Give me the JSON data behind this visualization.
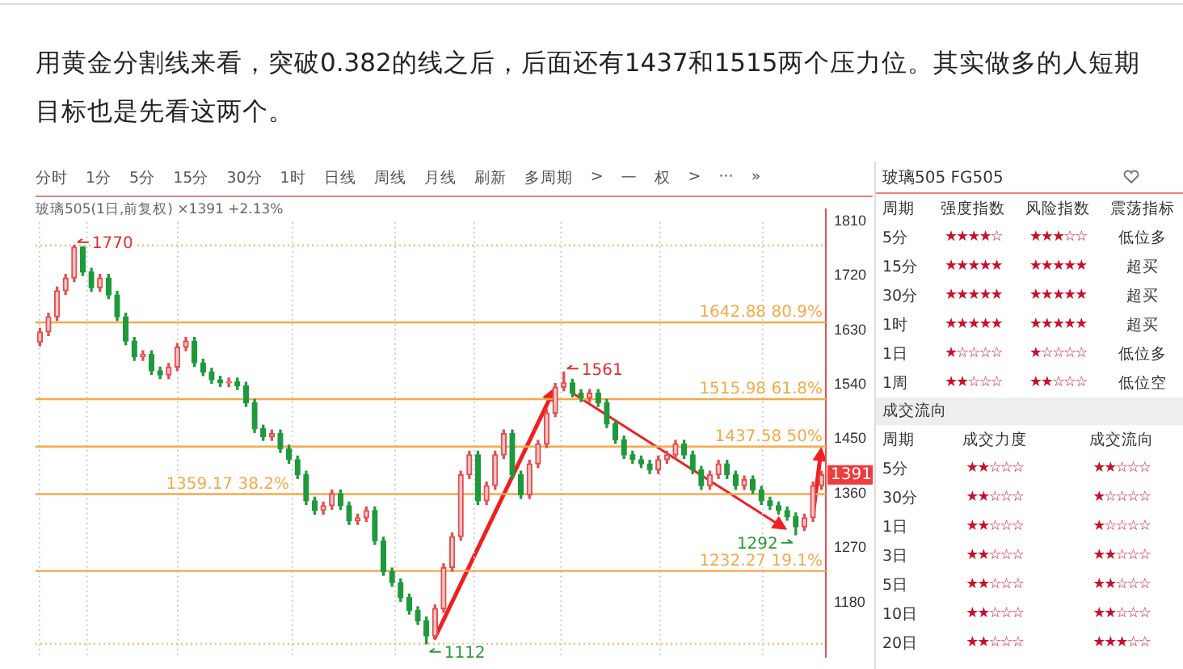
{
  "chart_data": [
    {
      "type": "candlestick",
      "title": "用黄金分割线来看，突破0.382的线之后，后面还有1437和1515两个压力位。其实做多的人短期目标也是先看这两个。",
      "subtitle": "玻璃505(1日,前复权) ×1391 +2.13%",
      "categories": [
        null,
        null,
        null,
        null,
        null,
        null,
        null,
        null,
        null,
        null,
        null,
        null,
        null,
        null,
        null,
        null,
        null,
        null,
        null,
        null,
        null,
        null,
        null,
        null,
        null,
        null,
        null,
        null,
        null,
        null,
        null,
        null,
        null,
        null,
        null,
        null,
        null,
        null,
        null,
        null,
        null,
        null,
        null,
        null,
        null,
        null,
        null,
        null,
        null,
        null,
        null,
        null,
        null,
        null,
        null,
        null,
        null,
        null,
        null,
        null,
        null,
        null,
        null,
        null,
        null,
        null,
        null,
        null,
        null,
        null,
        null,
        null,
        null,
        null,
        null,
        null,
        null,
        null,
        null,
        null,
        null,
        null,
        null,
        null,
        null,
        null,
        null,
        null,
        null,
        null,
        null,
        null
      ],
      "ohlc": [
        [
          1610,
          1633,
          1604,
          1627
        ],
        [
          1627,
          1658,
          1621,
          1652
        ],
        [
          1652,
          1701,
          1646,
          1695
        ],
        [
          1695,
          1722,
          1689,
          1716
        ],
        [
          1716,
          1770,
          1710,
          1767
        ],
        [
          1767,
          1768,
          1720,
          1726
        ],
        [
          1726,
          1732,
          1694,
          1700
        ],
        [
          1700,
          1722,
          1694,
          1716
        ],
        [
          1716,
          1722,
          1682,
          1688
        ],
        [
          1688,
          1694,
          1646,
          1652
        ],
        [
          1652,
          1658,
          1606,
          1612
        ],
        [
          1612,
          1618,
          1580,
          1586
        ],
        [
          1586,
          1596,
          1580,
          1590
        ],
        [
          1590,
          1596,
          1557,
          1563
        ],
        [
          1563,
          1569,
          1550,
          1556
        ],
        [
          1556,
          1575,
          1550,
          1569
        ],
        [
          1569,
          1608,
          1563,
          1602
        ],
        [
          1602,
          1618,
          1596,
          1612
        ],
        [
          1612,
          1618,
          1570,
          1576
        ],
        [
          1576,
          1582,
          1555,
          1561
        ],
        [
          1561,
          1567,
          1542,
          1548
        ],
        [
          1548,
          1554,
          1537,
          1543
        ],
        [
          1543,
          1551,
          1537,
          1545
        ],
        [
          1545,
          1551,
          1532,
          1538
        ],
        [
          1538,
          1544,
          1504,
          1510
        ],
        [
          1510,
          1516,
          1461,
          1467
        ],
        [
          1467,
          1473,
          1448,
          1454
        ],
        [
          1454,
          1465,
          1448,
          1459
        ],
        [
          1459,
          1465,
          1428,
          1434
        ],
        [
          1434,
          1440,
          1410,
          1416
        ],
        [
          1416,
          1422,
          1385,
          1391
        ],
        [
          1391,
          1397,
          1342,
          1348
        ],
        [
          1348,
          1354,
          1326,
          1332
        ],
        [
          1332,
          1346,
          1326,
          1340
        ],
        [
          1340,
          1366,
          1334,
          1360
        ],
        [
          1360,
          1366,
          1334,
          1340
        ],
        [
          1340,
          1346,
          1309,
          1315
        ],
        [
          1315,
          1326,
          1309,
          1320
        ],
        [
          1320,
          1338,
          1314,
          1332
        ],
        [
          1332,
          1338,
          1276,
          1282
        ],
        [
          1282,
          1288,
          1225,
          1231
        ],
        [
          1231,
          1237,
          1207,
          1213
        ],
        [
          1213,
          1219,
          1182,
          1188
        ],
        [
          1188,
          1194,
          1161,
          1167
        ],
        [
          1167,
          1173,
          1144,
          1150
        ],
        [
          1150,
          1156,
          1112,
          1125
        ],
        [
          1125,
          1176,
          1119,
          1170
        ],
        [
          1170,
          1244,
          1164,
          1238
        ],
        [
          1238,
          1295,
          1232,
          1289
        ],
        [
          1289,
          1397,
          1283,
          1391
        ],
        [
          1391,
          1430,
          1385,
          1424
        ],
        [
          1424,
          1430,
          1342,
          1348
        ],
        [
          1348,
          1379,
          1342,
          1373
        ],
        [
          1373,
          1430,
          1367,
          1424
        ],
        [
          1424,
          1465,
          1418,
          1459
        ],
        [
          1459,
          1465,
          1385,
          1391
        ],
        [
          1391,
          1397,
          1352,
          1358
        ],
        [
          1358,
          1415,
          1352,
          1409
        ],
        [
          1409,
          1448,
          1403,
          1442
        ],
        [
          1442,
          1499,
          1436,
          1493
        ],
        [
          1493,
          1542,
          1487,
          1536
        ],
        [
          1536,
          1561,
          1530,
          1543
        ],
        [
          1543,
          1549,
          1520,
          1526
        ],
        [
          1526,
          1532,
          1512,
          1518
        ],
        [
          1518,
          1532,
          1512,
          1526
        ],
        [
          1526,
          1532,
          1504,
          1510
        ],
        [
          1510,
          1516,
          1469,
          1475
        ],
        [
          1475,
          1481,
          1443,
          1449
        ],
        [
          1449,
          1455,
          1418,
          1424
        ],
        [
          1424,
          1430,
          1410,
          1416
        ],
        [
          1416,
          1422,
          1403,
          1409
        ],
        [
          1409,
          1415,
          1393,
          1399
        ],
        [
          1399,
          1422,
          1393,
          1416
        ],
        [
          1416,
          1430,
          1410,
          1424
        ],
        [
          1424,
          1448,
          1418,
          1442
        ],
        [
          1442,
          1448,
          1418,
          1424
        ],
        [
          1424,
          1430,
          1393,
          1399
        ],
        [
          1399,
          1405,
          1367,
          1373
        ],
        [
          1373,
          1397,
          1367,
          1391
        ],
        [
          1391,
          1415,
          1385,
          1409
        ],
        [
          1409,
          1415,
          1385,
          1391
        ],
        [
          1391,
          1397,
          1367,
          1373
        ],
        [
          1373,
          1389,
          1367,
          1383
        ],
        [
          1383,
          1389,
          1360,
          1366
        ],
        [
          1366,
          1372,
          1342,
          1348
        ],
        [
          1348,
          1354,
          1334,
          1340
        ],
        [
          1340,
          1346,
          1326,
          1332
        ],
        [
          1332,
          1338,
          1316,
          1322
        ],
        [
          1322,
          1328,
          1292,
          1305
        ],
        [
          1305,
          1326,
          1299,
          1320
        ],
        [
          1320,
          1379,
          1314,
          1373
        ],
        [
          1373,
          1397,
          1367,
          1391
        ]
      ],
      "ylim": [
        1090,
        1830
      ],
      "yticks": [
        1180,
        1270,
        1360,
        1450,
        1540,
        1630,
        1720,
        1810
      ],
      "ref_lines": [
        {
          "axis": "y",
          "value": 1770,
          "color": "#f3c27a",
          "line_style": "dotted"
        },
        {
          "axis": "y",
          "value": 1642.88,
          "label": "1642.88 80.9%",
          "color": "#f5a94a"
        },
        {
          "axis": "y",
          "value": 1515.98,
          "label": "1515.98 61.8%",
          "color": "#f5a94a"
        },
        {
          "axis": "y",
          "value": 1437.58,
          "label": "1437.58 50%",
          "color": "#f5a94a"
        },
        {
          "axis": "y",
          "value": 1359.17,
          "label": "1359.17 38.2%",
          "color": "#f5a94a"
        },
        {
          "axis": "y",
          "value": 1232.27,
          "label": "1232.27 19.1%",
          "color": "#f5a94a"
        },
        {
          "axis": "y",
          "value": 1112,
          "color": "#f3c27a",
          "line_style": "dotted"
        }
      ],
      "annotations": [
        "分时",
        "1分",
        "5分",
        "15分",
        "30分",
        "1时",
        "日线",
        "周线",
        "月线",
        "刷新",
        "多周期",
        ">",
        "—",
        "权",
        ">",
        "···",
        "»",
        {
          "text": "1770",
          "y": 1770
        },
        "1561",
        {
          "text": "1112",
          "y": 1112
        },
        "1292",
        {
          "text": "1391",
          "y": 1391
        }
      ],
      "grid": false,
      "legend": false
    },
    {
      "type": "other",
      "title": "玻璃505 FG505",
      "annotations": [
        "周期\t强度指数\t风险指数\t震荡指标",
        "5分\t★★★★☆\t★★★☆☆\t低位多",
        "15分\t★★★★★\t★★★★★\t超买",
        "30分\t★★★★★\t★★★★★\t超买",
        "1时\t★★★★★\t★★★★★\t超买",
        "1日\t★☆☆☆☆\t★☆☆☆☆\t低位多",
        "1周\t★★☆☆☆\t★★☆☆☆\t低位空",
        "成交流向",
        "周期\t成交力度\t成交流向",
        "5分\t★★☆☆☆\t★★☆☆☆",
        "30分\t★★☆☆☆\t★☆☆☆☆",
        "1日\t★★☆☆☆\t★☆☆☆☆",
        "3日\t★★☆☆☆\t★★☆☆☆",
        "5日\t★★☆☆☆\t★★☆☆☆",
        "10日\t★★☆☆☆\t★★☆☆☆",
        "20日\t★★☆☆☆\t★★★☆☆"
      ]
    }
  ]
}
